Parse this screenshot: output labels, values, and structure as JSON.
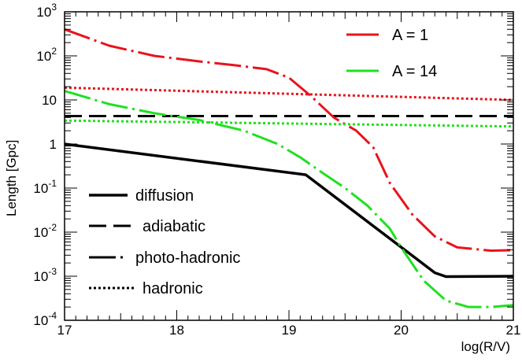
{
  "chart_data": {
    "type": "line",
    "xlabel": "log(R/V)",
    "ylabel": "Length [Gpc]",
    "xlim": [
      17,
      21
    ],
    "ylim": [
      0.0001,
      1000
    ],
    "yscale": "log",
    "grid": false,
    "x_ticks": [
      {
        "value": 17,
        "label": "17"
      },
      {
        "value": 18,
        "label": "18"
      },
      {
        "value": 19,
        "label": "19"
      },
      {
        "value": 20,
        "label": "20"
      },
      {
        "value": 21,
        "label": "21"
      }
    ],
    "y_ticks": [
      {
        "exp": -4,
        "base": "10",
        "sup": "-4"
      },
      {
        "exp": -3,
        "base": "10",
        "sup": "-3"
      },
      {
        "exp": -2,
        "base": "10",
        "sup": "-2"
      },
      {
        "exp": -1,
        "base": "10",
        "sup": "-1"
      },
      {
        "exp": 0,
        "base": "1",
        "sup": ""
      },
      {
        "exp": 1,
        "base": "10",
        "sup": ""
      },
      {
        "exp": 2,
        "base": "10",
        "sup": "2"
      },
      {
        "exp": 3,
        "base": "10",
        "sup": "3"
      }
    ],
    "color_legend": {
      "placement": "top-right",
      "entries": [
        {
          "label": "A = 1",
          "color": "#e8141c"
        },
        {
          "label": "A = 14",
          "color": "#1fe01f"
        }
      ]
    },
    "style_legend": {
      "placement": "bottom-left",
      "entries": [
        {
          "label": "diffusion",
          "style": "solid"
        },
        {
          "label": "adiabatic",
          "style": "dashed"
        },
        {
          "label": "photo-hadronic",
          "style": "dashdot"
        },
        {
          "label": "hadronic",
          "style": "dotted"
        }
      ]
    },
    "series": [
      {
        "kind": "diffusion",
        "style": "solid",
        "color": "#000000",
        "x": [
          17.0,
          19.15,
          20.3,
          20.4,
          21.0
        ],
        "y": [
          1.0,
          0.2,
          0.0012,
          0.00098,
          0.001
        ]
      },
      {
        "kind": "adiabatic",
        "style": "dashed",
        "color": "#000000",
        "x": [
          17.0,
          21.0
        ],
        "y": [
          4.3,
          4.3
        ]
      },
      {
        "kind": "photo-hadronic",
        "style": "dashdot",
        "color": "#e8141c",
        "x": [
          17.0,
          17.4,
          17.8,
          18.2,
          18.5,
          18.8,
          19.0,
          19.2,
          19.4,
          19.6,
          19.75,
          19.9,
          20.1,
          20.3,
          20.5,
          20.8,
          21.0
        ],
        "y": [
          400,
          170,
          100,
          75,
          62,
          50,
          32,
          12,
          4.0,
          2.0,
          0.85,
          0.13,
          0.025,
          0.008,
          0.0045,
          0.0038,
          0.0039
        ]
      },
      {
        "kind": "photo-hadronic",
        "style": "dashdot",
        "color": "#1fe01f",
        "x": [
          17.0,
          17.4,
          17.8,
          18.2,
          18.6,
          18.9,
          19.1,
          19.3,
          19.5,
          19.7,
          19.9,
          20.0,
          20.2,
          20.4,
          20.6,
          20.8,
          21.0
        ],
        "y": [
          16,
          8,
          5,
          3.5,
          2.0,
          1.0,
          0.5,
          0.22,
          0.1,
          0.04,
          0.012,
          0.0045,
          0.0008,
          0.00028,
          0.0002,
          0.0002,
          0.00022
        ]
      },
      {
        "kind": "hadronic",
        "style": "dotted",
        "color": "#e8141c",
        "x": [
          17.0,
          21.0
        ],
        "y": [
          19,
          10
        ]
      },
      {
        "kind": "hadronic",
        "style": "dotted",
        "color": "#1fe01f",
        "x": [
          17.0,
          21.0
        ],
        "y": [
          3.4,
          2.5
        ]
      }
    ]
  }
}
